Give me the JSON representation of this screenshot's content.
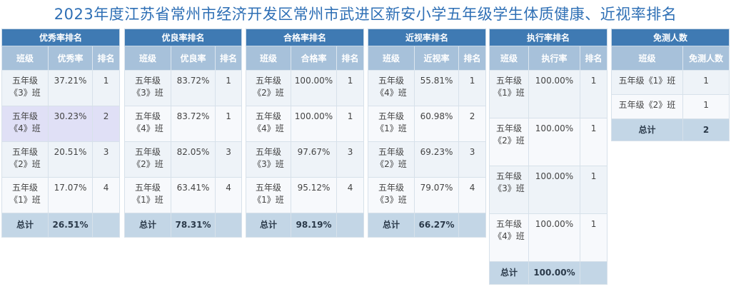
{
  "title": "2023年度江苏省常州市经济开发区常州市武进区新安小学五年级学生体质健康、近视率排名",
  "excellent": {
    "header": "优秀率排名",
    "cols": [
      "班级",
      "优秀率",
      "排名"
    ],
    "rows": [
      {
        "cls": "五年级《3》班",
        "val": "37.21%",
        "rank": "1"
      },
      {
        "cls": "五年级《4》班",
        "val": "30.23%",
        "rank": "2"
      },
      {
        "cls": "五年级《2》班",
        "val": "20.51%",
        "rank": "3"
      },
      {
        "cls": "五年级《1》班",
        "val": "17.07%",
        "rank": "4"
      }
    ],
    "total_label": "总计",
    "total_val": "26.51%"
  },
  "good": {
    "header": "优良率排名",
    "cols": [
      "班级",
      "优良率",
      "排名"
    ],
    "rows": [
      {
        "cls": "五年级《3》班",
        "val": "83.72%",
        "rank": "1"
      },
      {
        "cls": "五年级《4》班",
        "val": "83.72%",
        "rank": "1"
      },
      {
        "cls": "五年级《2》班",
        "val": "82.05%",
        "rank": "3"
      },
      {
        "cls": "五年级《1》班",
        "val": "63.41%",
        "rank": "4"
      }
    ],
    "total_label": "总计",
    "total_val": "78.31%"
  },
  "pass": {
    "header": "合格率排名",
    "cols": [
      "班级",
      "合格率",
      "排名"
    ],
    "rows": [
      {
        "cls": "五年级《2》班",
        "val": "100.00%",
        "rank": "1"
      },
      {
        "cls": "五年级《4》班",
        "val": "100.00%",
        "rank": "1"
      },
      {
        "cls": "五年级《3》班",
        "val": "97.67%",
        "rank": "3"
      },
      {
        "cls": "五年级《1》班",
        "val": "95.12%",
        "rank": "4"
      }
    ],
    "total_label": "总计",
    "total_val": "98.19%"
  },
  "myopia": {
    "header": "近视率排名",
    "cols": [
      "班级",
      "近视率",
      "排名"
    ],
    "rows": [
      {
        "cls": "五年级《4》班",
        "val": "55.81%",
        "rank": "1"
      },
      {
        "cls": "五年级《1》班",
        "val": "60.98%",
        "rank": "2"
      },
      {
        "cls": "五年级《2》班",
        "val": "69.23%",
        "rank": "3"
      },
      {
        "cls": "五年级《3》班",
        "val": "79.07%",
        "rank": "4"
      }
    ],
    "total_label": "总计",
    "total_val": "66.27%"
  },
  "execution": {
    "header": "执行率排名",
    "cols": [
      "班级",
      "执行率",
      "排名"
    ],
    "rows": [
      {
        "cls": "五年级《1》班",
        "val": "100.00%",
        "rank": "1"
      },
      {
        "cls": "五年级《2》班",
        "val": "100.00%",
        "rank": "1"
      },
      {
        "cls": "五年级《3》班",
        "val": "100.00%",
        "rank": "1"
      },
      {
        "cls": "五年级《4》班",
        "val": "100.00%",
        "rank": "1"
      }
    ],
    "total_label": "总计",
    "total_val": "100.00%"
  },
  "exempt": {
    "header": "免测人数",
    "cols": [
      "班级",
      "免测人数"
    ],
    "rows": [
      {
        "cls": "五年级《1》班",
        "val": "1"
      },
      {
        "cls": "五年级《2》班",
        "val": "1"
      }
    ],
    "total_label": "总计",
    "total_val": "2"
  },
  "colors": {
    "title": "#2e6fb5",
    "group_header": "#3f7ab3",
    "column_header": "#a7c1da",
    "total_row": "#c3d6e6",
    "highlight_row": "#e0e0f6"
  }
}
